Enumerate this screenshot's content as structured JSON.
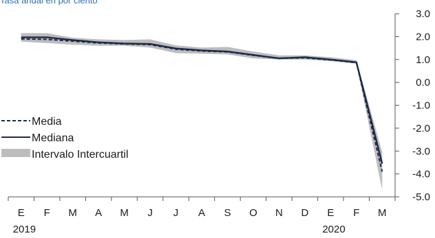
{
  "chart_data": {
    "type": "line",
    "title": "",
    "subtitle": "Tasa anual en por ciento",
    "xlabel": "",
    "ylabel": "",
    "ylim": [
      -5.0,
      3.0
    ],
    "yticks": [
      "3.0",
      "2.0",
      "1.0",
      "0.0",
      "-1.0",
      "-2.0",
      "-3.0",
      "-4.0",
      "-5.0"
    ],
    "categories": [
      "E",
      "F",
      "M",
      "A",
      "M",
      "J",
      "J",
      "A",
      "S",
      "O",
      "N",
      "D",
      "E",
      "F",
      "M"
    ],
    "year_labels": [
      {
        "label": "2019",
        "index": 0
      },
      {
        "label": "2020",
        "index": 12
      }
    ],
    "grid": false,
    "legend_position": "left",
    "series": [
      {
        "name": "Media",
        "style": "dashed",
        "color": "#1b2a4a",
        "values": [
          1.9,
          1.88,
          1.8,
          1.72,
          1.68,
          1.65,
          1.45,
          1.37,
          1.33,
          1.18,
          1.05,
          1.07,
          0.98,
          0.86,
          -3.9
        ]
      },
      {
        "name": "Mediana",
        "style": "solid",
        "color": "#1b2a4a",
        "values": [
          1.97,
          1.97,
          1.85,
          1.75,
          1.7,
          1.68,
          1.48,
          1.4,
          1.35,
          1.2,
          1.05,
          1.1,
          1.0,
          0.88,
          -3.55
        ]
      },
      {
        "name": "Intervalo Intercuartil",
        "style": "band",
        "color": "#bdbdbd",
        "lower": [
          1.78,
          1.72,
          1.65,
          1.6,
          1.6,
          1.52,
          1.28,
          1.25,
          1.22,
          1.05,
          1.0,
          1.0,
          0.93,
          0.82,
          -4.7
        ],
        "upper": [
          2.15,
          2.15,
          1.95,
          1.88,
          1.85,
          1.88,
          1.62,
          1.52,
          1.55,
          1.35,
          1.18,
          1.18,
          1.1,
          0.97,
          -3.05
        ]
      }
    ]
  }
}
